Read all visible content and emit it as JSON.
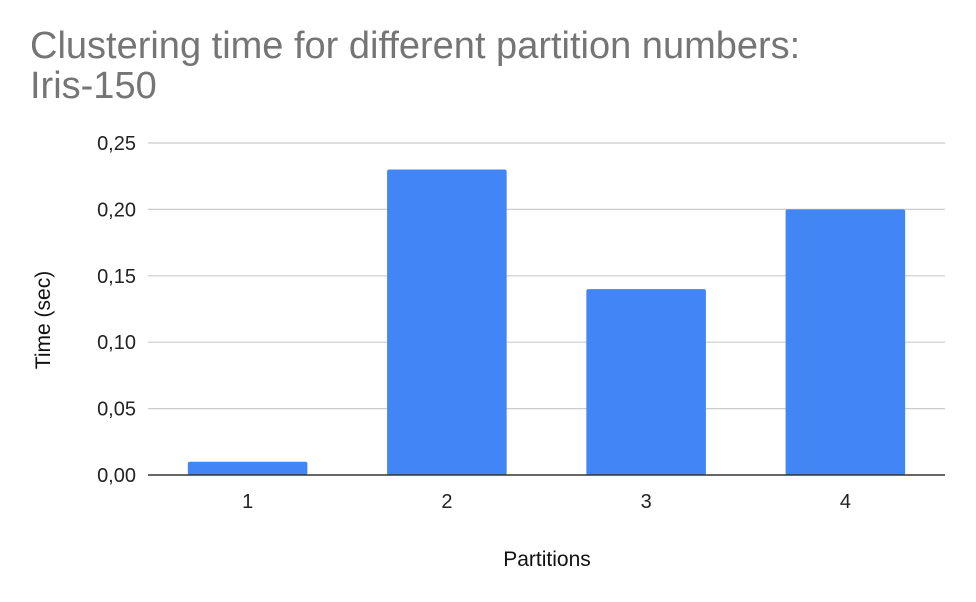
{
  "chart_data": {
    "type": "bar",
    "title_lines": [
      "Clustering time for different partition numbers:",
      "Iris-150"
    ],
    "xlabel": "Partitions",
    "ylabel": "Time (sec)",
    "categories": [
      "1",
      "2",
      "3",
      "4"
    ],
    "values": [
      0.01,
      0.23,
      0.14,
      0.2
    ],
    "ylim": [
      0,
      0.25
    ],
    "yticks": [
      0,
      0.05,
      0.1,
      0.15,
      0.2,
      0.25
    ],
    "ytick_labels": [
      "0,00",
      "0,05",
      "0,10",
      "0,15",
      "0,20",
      "0,25"
    ],
    "grid": true,
    "legend": "none",
    "bar_color": "#4285f4",
    "grid_color": "#cccccc",
    "axis_color": "#333333"
  }
}
